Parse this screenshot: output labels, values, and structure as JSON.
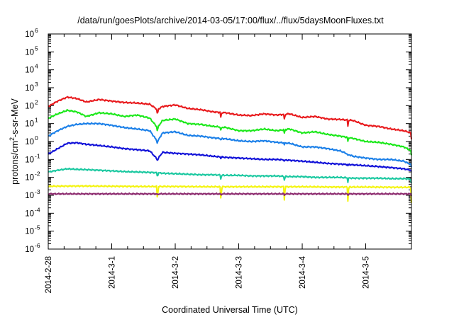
{
  "chart_data": {
    "type": "line",
    "title": "/data/run/goesPlots/archive/2014-03-05/17:00/flux/../flux/5daysMoonFluxes.txt",
    "xlabel": "Coordinated Universal Time (UTC)",
    "ylabel": {
      "base": "protons/cm",
      "sup": "2",
      "rest": "-s-sr-MeV"
    },
    "yscale": "log",
    "ylim": [
      1e-06,
      1000000.0
    ],
    "xlim": [
      0,
      5.72
    ],
    "x_units": "days since 2014-2-28 00:00 UTC",
    "x_ticks": [
      {
        "x": 0,
        "label": "2014-2-28"
      },
      {
        "x": 1,
        "label": "2014-3-1"
      },
      {
        "x": 2,
        "label": "2014-3-2"
      },
      {
        "x": 3,
        "label": "2014-3-3"
      },
      {
        "x": 4,
        "label": "2014-3-4"
      },
      {
        "x": 5,
        "label": "2014-3-5"
      }
    ],
    "y_ticks": [
      {
        "exp": -6,
        "label": "10",
        "sup": "-6"
      },
      {
        "exp": -5,
        "label": "10",
        "sup": "-5"
      },
      {
        "exp": -4,
        "label": "10",
        "sup": "-4"
      },
      {
        "exp": -3,
        "label": "10",
        "sup": "-3"
      },
      {
        "exp": -2,
        "label": "10",
        "sup": "-2"
      },
      {
        "exp": -1,
        "label": "10",
        "sup": "-1"
      },
      {
        "exp": 0,
        "label": "10",
        "sup": "0"
      },
      {
        "exp": 1,
        "label": "10",
        "sup": "1"
      },
      {
        "exp": 2,
        "label": "10",
        "sup": "2"
      },
      {
        "exp": 3,
        "label": "10",
        "sup": "3"
      },
      {
        "exp": 4,
        "label": "10",
        "sup": "4"
      },
      {
        "exp": 5,
        "label": "10",
        "sup": "5"
      },
      {
        "exp": 6,
        "label": "10",
        "sup": "6"
      }
    ],
    "series": [
      {
        "color": "#e8191c",
        "x": [
          0,
          0.15,
          0.3,
          0.45,
          0.6,
          0.8,
          1.0,
          1.2,
          1.4,
          1.6,
          1.72,
          1.8,
          2.0,
          2.2,
          2.4,
          2.6,
          2.8,
          3.0,
          3.2,
          3.4,
          3.6,
          3.8,
          4.0,
          4.2,
          4.4,
          4.6,
          4.8,
          5.0,
          5.2,
          5.4,
          5.6,
          5.72
        ],
        "y": [
          90,
          180,
          300,
          250,
          160,
          220,
          180,
          150,
          140,
          120,
          60,
          90,
          110,
          70,
          60,
          45,
          40,
          30,
          28,
          35,
          30,
          35,
          22,
          25,
          18,
          17,
          15,
          8,
          7,
          5,
          4,
          3
        ]
      },
      {
        "color": "#1be81a",
        "x": [
          0,
          0.15,
          0.3,
          0.45,
          0.6,
          0.8,
          1.0,
          1.2,
          1.4,
          1.6,
          1.72,
          1.8,
          2.0,
          2.2,
          2.4,
          2.6,
          2.8,
          3.0,
          3.2,
          3.4,
          3.6,
          3.8,
          4.0,
          4.2,
          4.4,
          4.6,
          4.8,
          5.0,
          5.2,
          5.4,
          5.6,
          5.72
        ],
        "y": [
          20,
          35,
          55,
          45,
          25,
          40,
          35,
          25,
          30,
          20,
          6,
          15,
          18,
          10,
          9,
          7,
          6,
          4,
          4,
          5,
          4,
          5,
          3,
          3.5,
          2.5,
          2,
          1.5,
          1,
          0.9,
          0.7,
          0.5,
          0.3
        ]
      },
      {
        "color": "#1a7fe8",
        "x": [
          0,
          0.15,
          0.3,
          0.45,
          0.6,
          0.8,
          1.0,
          1.2,
          1.4,
          1.6,
          1.72,
          1.8,
          2.0,
          2.2,
          2.4,
          2.6,
          2.8,
          3.0,
          3.2,
          3.4,
          3.6,
          3.8,
          4.0,
          4.2,
          4.4,
          4.6,
          4.8,
          5.0,
          5.2,
          5.4,
          5.6,
          5.72
        ],
        "y": [
          2,
          4,
          7,
          9,
          10,
          10,
          8,
          6,
          5,
          4,
          1,
          3,
          3.5,
          2.2,
          2,
          1.6,
          1.4,
          1.1,
          1,
          1.1,
          0.9,
          0.8,
          0.5,
          0.5,
          0.4,
          0.3,
          0.15,
          0.12,
          0.1,
          0.1,
          0.08,
          0.05
        ]
      },
      {
        "color": "#1010d8",
        "x": [
          0,
          0.15,
          0.3,
          0.45,
          0.6,
          0.8,
          1.0,
          1.2,
          1.4,
          1.6,
          1.72,
          1.8,
          2.0,
          2.2,
          2.4,
          2.6,
          2.8,
          3.0,
          3.2,
          3.4,
          3.6,
          3.8,
          4.0,
          4.2,
          4.4,
          4.6,
          4.8,
          5.0,
          5.2,
          5.4,
          5.6,
          5.72
        ],
        "y": [
          0.2,
          0.4,
          0.8,
          0.85,
          0.7,
          0.6,
          0.5,
          0.4,
          0.35,
          0.3,
          0.1,
          0.25,
          0.22,
          0.2,
          0.18,
          0.15,
          0.13,
          0.12,
          0.11,
          0.1,
          0.1,
          0.09,
          0.08,
          0.07,
          0.06,
          0.055,
          0.05,
          0.045,
          0.04,
          0.035,
          0.03,
          0.025
        ]
      },
      {
        "color": "#1ac8a0",
        "x": [
          0,
          0.15,
          0.3,
          0.45,
          0.6,
          0.8,
          1.0,
          1.2,
          1.4,
          1.6,
          1.72,
          1.8,
          2.0,
          2.2,
          2.4,
          2.6,
          2.8,
          3.0,
          3.2,
          3.4,
          3.6,
          3.8,
          4.0,
          4.2,
          4.4,
          4.6,
          4.8,
          5.0,
          5.2,
          5.4,
          5.6,
          5.72
        ],
        "y": [
          0.02,
          0.025,
          0.03,
          0.028,
          0.027,
          0.025,
          0.023,
          0.021,
          0.02,
          0.019,
          0.018,
          0.017,
          0.016,
          0.015,
          0.014,
          0.014,
          0.013,
          0.013,
          0.012,
          0.012,
          0.012,
          0.011,
          0.011,
          0.01,
          0.01,
          0.01,
          0.009,
          0.009,
          0.009,
          0.0085,
          0.0085,
          0.008
        ]
      },
      {
        "color": "#f4f410",
        "x": [
          0,
          0.5,
          1.0,
          1.5,
          2.0,
          2.5,
          3.0,
          3.5,
          4.0,
          4.5,
          5.0,
          5.5,
          5.72
        ],
        "y": [
          0.0032,
          0.0033,
          0.0032,
          0.0031,
          0.0031,
          0.003,
          0.003,
          0.003,
          0.003,
          0.0029,
          0.0029,
          0.0028,
          0.0028
        ]
      },
      {
        "color": "#8c2a6e",
        "x": [
          0,
          0.5,
          1.0,
          1.5,
          2.0,
          2.5,
          3.0,
          3.5,
          4.0,
          4.5,
          5.0,
          5.5,
          5.72
        ],
        "y": [
          0.0012,
          0.0012,
          0.0012,
          0.0012,
          0.0012,
          0.0012,
          0.0012,
          0.0012,
          0.0012,
          0.0012,
          0.0012,
          0.0012,
          0.0012
        ]
      }
    ],
    "dip_times": [
      1.72,
      2.72,
      3.72,
      4.72,
      5.72
    ],
    "grid": false,
    "legend": "none"
  }
}
